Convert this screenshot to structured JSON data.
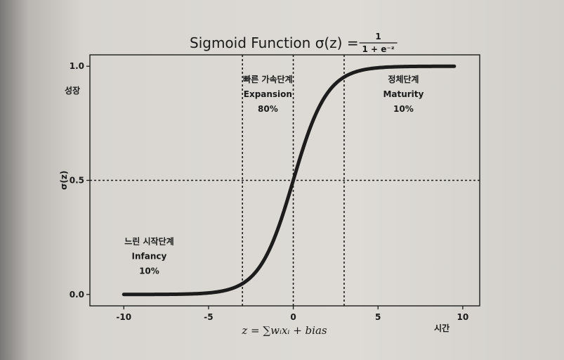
{
  "chart_data": {
    "type": "line",
    "title": "Sigmoid Function σ(z) = ",
    "title_formula": {
      "numerator": "1",
      "denominator": "1 + e⁻ᶻ"
    },
    "xlabel": "z = ∑wᵢxᵢ + bias",
    "xlabel_right": "시간",
    "ylabel": "σ(z)",
    "ylabel_side": "성장",
    "xlim": [
      -12,
      11
    ],
    "ylim": [
      -0.05,
      1.05
    ],
    "xticks": [
      -10,
      -5,
      0,
      5,
      10
    ],
    "xtick_labels": [
      "-10",
      "-5",
      "0",
      "5",
      "10"
    ],
    "yticks": [
      0.0,
      0.5,
      1.0
    ],
    "ytick_labels": [
      "0.0",
      "0.5",
      "1.0"
    ],
    "function": "1/(1+exp(-z))",
    "x_range": [
      -10,
      9.5
    ],
    "vlines": [
      -3,
      0,
      3
    ],
    "hline": 0.5,
    "stages": [
      {
        "name": "느린 시작단계",
        "en": "Infancy",
        "pct": "10%",
        "x": -8.5,
        "y": 0.22
      },
      {
        "name": "빠른 가속단계",
        "en": "Expansion",
        "pct": "80%",
        "x": -1.5,
        "y": 0.93
      },
      {
        "name": "정체단계",
        "en": "Maturity",
        "pct": "10%",
        "x": 6.5,
        "y": 0.93
      }
    ],
    "colors": {
      "curve": "#1c1c1c",
      "axes": "#1c1c1c",
      "page": "#dcd9d4"
    }
  }
}
